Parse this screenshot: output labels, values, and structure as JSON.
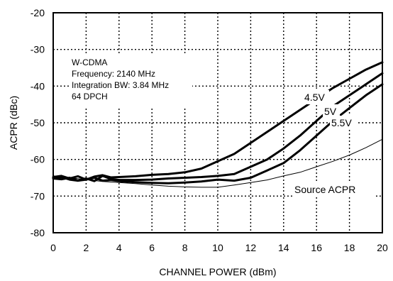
{
  "chart_data": {
    "type": "line",
    "title": "",
    "xlabel": "CHANNEL POWER (dBm)",
    "ylabel": "ACPR (dBc)",
    "xlim": [
      0,
      20
    ],
    "ylim": [
      -80,
      -20
    ],
    "xticks": [
      0,
      2,
      4,
      6,
      8,
      10,
      12,
      14,
      16,
      18,
      20
    ],
    "yticks": [
      -80,
      -70,
      -60,
      -50,
      -40,
      -30,
      -20
    ],
    "grid": true,
    "grid_style": "dotted",
    "annotation_lines": [
      "W-CDMA",
      "Frequency: 2140 MHz",
      "Integration BW: 3.84 MHz",
      "64 DPCH"
    ],
    "series": [
      {
        "name": "4.5V",
        "line": "thick",
        "x": [
          0,
          0.5,
          1,
          1.5,
          2,
          2.5,
          3,
          3.5,
          4,
          5,
          6,
          7,
          8,
          9,
          10,
          11,
          12,
          13,
          14,
          15,
          16,
          17,
          18,
          19,
          20
        ],
        "y": [
          -64.8,
          -64.5,
          -65.2,
          -64.6,
          -65.5,
          -64.7,
          -64.3,
          -64.9,
          -64.8,
          -64.6,
          -64.2,
          -64.0,
          -63.5,
          -62.5,
          -60.5,
          -58.5,
          -55.5,
          -52.5,
          -49.5,
          -46.5,
          -43.5,
          -40.5,
          -38.0,
          -35.5,
          -33.5
        ]
      },
      {
        "name": "5V",
        "line": "thick",
        "x": [
          0,
          0.5,
          1,
          1.5,
          2,
          2.5,
          3,
          3.5,
          4,
          5,
          6,
          7,
          8,
          9,
          10,
          11,
          12,
          13,
          14,
          15,
          16,
          17,
          18,
          19,
          20
        ],
        "y": [
          -65.0,
          -64.8,
          -65.5,
          -65.8,
          -65.2,
          -65.9,
          -64.5,
          -65.3,
          -65.6,
          -65.6,
          -65.5,
          -65.2,
          -65.0,
          -64.8,
          -64.5,
          -64.0,
          -62.0,
          -60.0,
          -57.0,
          -53.5,
          -49.5,
          -45.5,
          -42.5,
          -39.5,
          -36.5
        ]
      },
      {
        "name": "5.5V",
        "line": "thick",
        "x": [
          0,
          0.5,
          1,
          1.5,
          2,
          2.5,
          3,
          3.5,
          4,
          5,
          6,
          7,
          8,
          9,
          10,
          11,
          12,
          13,
          14,
          15,
          16,
          17,
          18,
          19,
          20
        ],
        "y": [
          -65.2,
          -65.4,
          -65.0,
          -65.8,
          -65.5,
          -65.0,
          -65.8,
          -65.6,
          -65.9,
          -66.2,
          -66.4,
          -66.5,
          -66.3,
          -66.0,
          -65.5,
          -65.8,
          -65.0,
          -63.0,
          -61.0,
          -57.5,
          -53.5,
          -49.5,
          -46.0,
          -42.5,
          -39.5
        ]
      },
      {
        "name": "Source ACPR",
        "line": "thin",
        "x": [
          0,
          1,
          2,
          3,
          4,
          5,
          6,
          7,
          8,
          9,
          10,
          11,
          12,
          13,
          14,
          15,
          16,
          17,
          18,
          19,
          20
        ],
        "y": [
          -64.5,
          -65.0,
          -65.5,
          -66.0,
          -66.3,
          -66.6,
          -67.0,
          -67.3,
          -67.5,
          -67.6,
          -67.6,
          -67.0,
          -66.3,
          -65.6,
          -64.5,
          -63.5,
          -62.0,
          -60.5,
          -58.8,
          -56.8,
          -54.5
        ]
      }
    ]
  }
}
